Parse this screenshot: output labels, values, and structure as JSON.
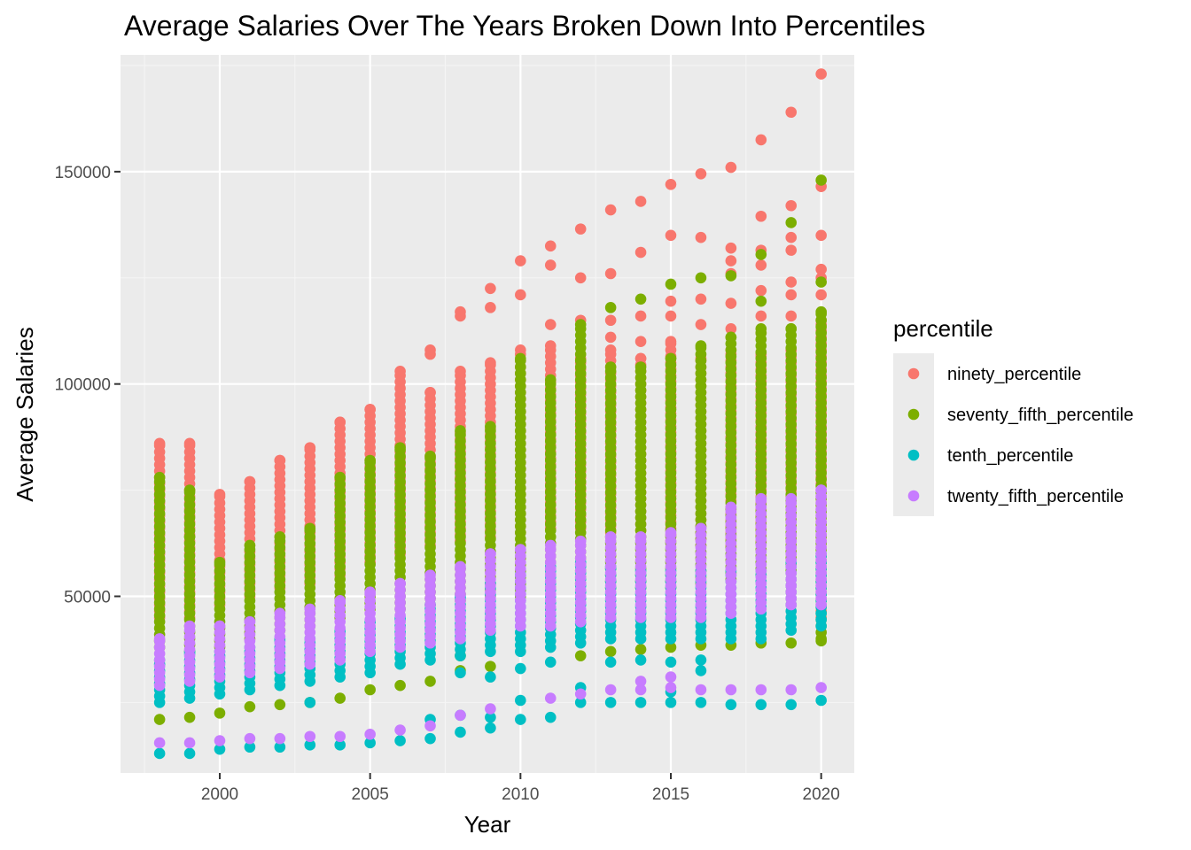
{
  "chart_data": {
    "type": "scatter",
    "title": "Average Salaries Over The Years Broken Down Into Percentiles",
    "xlabel": "Year",
    "ylabel": "Average Salaries",
    "xlim": [
      1996.7,
      2021.1
    ],
    "ylim": [
      8400,
      177500
    ],
    "x_ticks": [
      2000,
      2005,
      2010,
      2015,
      2020
    ],
    "x_tick_labels": [
      "2000",
      "2005",
      "2010",
      "2015",
      "2020"
    ],
    "y_ticks": [
      50000,
      100000,
      150000
    ],
    "y_tick_labels": [
      "50000",
      "100000",
      "150000"
    ],
    "grid": true,
    "legend": {
      "title": "percentile",
      "position": "right"
    },
    "colors": {
      "panel": "#ebebeb",
      "grid_major": "#ffffff",
      "grid_minor": "#f5f5f5"
    },
    "series": [
      {
        "name": "ninety_percentile",
        "color": "#F8766D",
        "points": [
          {
            "year": 1998,
            "min": 45000,
            "max": 86000,
            "extra": []
          },
          {
            "year": 1999,
            "min": 45000,
            "max": 86000,
            "extra": []
          },
          {
            "year": 2000,
            "min": 48000,
            "max": 74000,
            "extra": []
          },
          {
            "year": 2001,
            "min": 50000,
            "max": 77000,
            "extra": []
          },
          {
            "year": 2002,
            "min": 52000,
            "max": 82000,
            "extra": []
          },
          {
            "year": 2003,
            "min": 53000,
            "max": 85000,
            "extra": []
          },
          {
            "year": 2004,
            "min": 55000,
            "max": 91000,
            "extra": []
          },
          {
            "year": 2005,
            "min": 58000,
            "max": 94000,
            "extra": []
          },
          {
            "year": 2006,
            "min": 60000,
            "max": 103000,
            "extra": []
          },
          {
            "year": 2007,
            "min": 62000,
            "max": 98000,
            "extra": [
              107000,
              108000
            ]
          },
          {
            "year": 2008,
            "min": 63000,
            "max": 103000,
            "extra": [
              116000,
              117000
            ]
          },
          {
            "year": 2009,
            "min": 64000,
            "max": 105000,
            "extra": [
              118000,
              122500
            ]
          },
          {
            "year": 2010,
            "min": 65000,
            "max": 108000,
            "extra": [
              121000,
              129000
            ]
          },
          {
            "year": 2011,
            "min": 66000,
            "max": 109000,
            "extra": [
              114000,
              128000,
              132500
            ]
          },
          {
            "year": 2012,
            "min": 66000,
            "max": 106000,
            "extra": [
              115000,
              125000,
              136500
            ]
          },
          {
            "year": 2013,
            "min": 65000,
            "max": 108000,
            "extra": [
              111000,
              115000,
              126000,
              141000
            ]
          },
          {
            "year": 2014,
            "min": 64000,
            "max": 106000,
            "extra": [
              110000,
              116000,
              131000,
              143000
            ]
          },
          {
            "year": 2015,
            "min": 63000,
            "max": 110000,
            "extra": [
              116000,
              119500,
              135000,
              147000
            ]
          },
          {
            "year": 2016,
            "min": 62000,
            "max": 106000,
            "extra": [
              114000,
              120000,
              134500,
              149500
            ]
          },
          {
            "year": 2017,
            "min": 62000,
            "max": 108000,
            "extra": [
              113000,
              119000,
              126000,
              129000,
              132000,
              151000
            ]
          },
          {
            "year": 2018,
            "min": 63000,
            "max": 107000,
            "extra": [
              112000,
              116000,
              122000,
              128000,
              131500,
              139500,
              157500
            ]
          },
          {
            "year": 2019,
            "min": 48000,
            "max": 108000,
            "extra": [
              116000,
              121000,
              124000,
              131500,
              134500,
              142000,
              164000
            ]
          },
          {
            "year": 2020,
            "min": 45000,
            "max": 115000,
            "extra": [
              121000,
              125000,
              127000,
              135000,
              146500,
              173000
            ]
          }
        ]
      },
      {
        "name": "seventy_fifth_percentile",
        "color": "#7CAE00",
        "points": [
          {
            "year": 1998,
            "min": 38000,
            "max": 78000,
            "extra": [
              21000
            ]
          },
          {
            "year": 1999,
            "min": 37000,
            "max": 75000,
            "extra": [
              21500,
              64000
            ]
          },
          {
            "year": 2000,
            "min": 38000,
            "max": 58000,
            "extra": [
              22500
            ]
          },
          {
            "year": 2001,
            "min": 40000,
            "max": 62000,
            "extra": [
              24000
            ]
          },
          {
            "year": 2002,
            "min": 42000,
            "max": 64000,
            "extra": [
              24500
            ]
          },
          {
            "year": 2003,
            "min": 43000,
            "max": 66000,
            "extra": [
              25000
            ]
          },
          {
            "year": 2004,
            "min": 45000,
            "max": 78000,
            "extra": [
              26000
            ]
          },
          {
            "year": 2005,
            "min": 47000,
            "max": 82000,
            "extra": [
              28000
            ]
          },
          {
            "year": 2006,
            "min": 47000,
            "max": 85000,
            "extra": [
              29000
            ]
          },
          {
            "year": 2007,
            "min": 48000,
            "max": 83000,
            "extra": [
              30000
            ]
          },
          {
            "year": 2008,
            "min": 49000,
            "max": 89000,
            "extra": [
              32500,
              36000
            ]
          },
          {
            "year": 2009,
            "min": 50000,
            "max": 90000,
            "extra": [
              33500
            ]
          },
          {
            "year": 2010,
            "min": 50000,
            "max": 106000,
            "extra": []
          },
          {
            "year": 2011,
            "min": 52000,
            "max": 101000,
            "extra": []
          },
          {
            "year": 2012,
            "min": 53000,
            "max": 114000,
            "extra": [
              36000
            ]
          },
          {
            "year": 2013,
            "min": 52000,
            "max": 104000,
            "extra": [
              37000,
              118000
            ]
          },
          {
            "year": 2014,
            "min": 52000,
            "max": 104000,
            "extra": [
              37500,
              120000
            ]
          },
          {
            "year": 2015,
            "min": 52000,
            "max": 106000,
            "extra": [
              38000,
              123500
            ]
          },
          {
            "year": 2016,
            "min": 53000,
            "max": 109000,
            "extra": [
              38500,
              125000
            ]
          },
          {
            "year": 2017,
            "min": 54000,
            "max": 111000,
            "extra": [
              38500,
              125500
            ]
          },
          {
            "year": 2018,
            "min": 55000,
            "max": 113000,
            "extra": [
              39000,
              119500,
              130500
            ]
          },
          {
            "year": 2019,
            "min": 56000,
            "max": 113000,
            "extra": [
              39000,
              138000
            ]
          },
          {
            "year": 2020,
            "min": 40000,
            "max": 117000,
            "extra": [
              39500,
              124000,
              148000
            ]
          }
        ]
      },
      {
        "name": "tenth_percentile",
        "color": "#00BFC4",
        "points": [
          {
            "year": 1998,
            "min": 25000,
            "max": 35000,
            "extra": [
              13000
            ]
          },
          {
            "year": 1999,
            "min": 26000,
            "max": 37000,
            "extra": [
              13000
            ]
          },
          {
            "year": 2000,
            "min": 27000,
            "max": 37000,
            "extra": [
              14000
            ]
          },
          {
            "year": 2001,
            "min": 28000,
            "max": 38000,
            "extra": [
              14500
            ]
          },
          {
            "year": 2002,
            "min": 29000,
            "max": 40000,
            "extra": [
              14500
            ]
          },
          {
            "year": 2003,
            "min": 30000,
            "max": 40000,
            "extra": [
              15000,
              25000
            ]
          },
          {
            "year": 2004,
            "min": 31000,
            "max": 42000,
            "extra": [
              15000
            ]
          },
          {
            "year": 2005,
            "min": 32000,
            "max": 44000,
            "extra": [
              15500
            ]
          },
          {
            "year": 2006,
            "min": 34000,
            "max": 45000,
            "extra": [
              16000
            ]
          },
          {
            "year": 2007,
            "min": 35000,
            "max": 48000,
            "extra": [
              16500,
              21000
            ]
          },
          {
            "year": 2008,
            "min": 36000,
            "max": 50000,
            "extra": [
              18000,
              22000,
              32000
            ]
          },
          {
            "year": 2009,
            "min": 37000,
            "max": 53000,
            "extra": [
              19000,
              21500,
              31000
            ]
          },
          {
            "year": 2010,
            "min": 37000,
            "max": 55000,
            "extra": [
              21000,
              25500,
              33000
            ]
          },
          {
            "year": 2011,
            "min": 38000,
            "max": 57000,
            "extra": [
              21500,
              34500
            ]
          },
          {
            "year": 2012,
            "min": 39000,
            "max": 58000,
            "extra": [
              25000,
              28500
            ]
          },
          {
            "year": 2013,
            "min": 40000,
            "max": 57000,
            "extra": [
              25000,
              34500
            ]
          },
          {
            "year": 2014,
            "min": 40000,
            "max": 56000,
            "extra": [
              25000,
              35000
            ]
          },
          {
            "year": 2015,
            "min": 40000,
            "max": 56000,
            "extra": [
              25000,
              27500,
              34500
            ]
          },
          {
            "year": 2016,
            "min": 40000,
            "max": 56000,
            "extra": [
              25000,
              32500,
              35000
            ]
          },
          {
            "year": 2017,
            "min": 40000,
            "max": 56000,
            "extra": [
              24500
            ]
          },
          {
            "year": 2018,
            "min": 40000,
            "max": 56000,
            "extra": [
              24500
            ]
          },
          {
            "year": 2019,
            "min": 42000,
            "max": 58000,
            "extra": [
              24500
            ]
          },
          {
            "year": 2020,
            "min": 43000,
            "max": 60000,
            "extra": [
              25500
            ]
          }
        ]
      },
      {
        "name": "twenty_fifth_percentile",
        "color": "#C77CFF",
        "points": [
          {
            "year": 1998,
            "min": 29000,
            "max": 40000,
            "extra": [
              15500
            ]
          },
          {
            "year": 1999,
            "min": 30000,
            "max": 43000,
            "extra": [
              15500
            ]
          },
          {
            "year": 2000,
            "min": 31000,
            "max": 43000,
            "extra": [
              16000
            ]
          },
          {
            "year": 2001,
            "min": 32000,
            "max": 44000,
            "extra": [
              16500
            ]
          },
          {
            "year": 2002,
            "min": 33000,
            "max": 46000,
            "extra": [
              16500
            ]
          },
          {
            "year": 2003,
            "min": 34000,
            "max": 47000,
            "extra": [
              17000
            ]
          },
          {
            "year": 2004,
            "min": 35000,
            "max": 49000,
            "extra": [
              17000
            ]
          },
          {
            "year": 2005,
            "min": 37000,
            "max": 51000,
            "extra": [
              17500
            ]
          },
          {
            "year": 2006,
            "min": 38000,
            "max": 53000,
            "extra": [
              18500
            ]
          },
          {
            "year": 2007,
            "min": 39000,
            "max": 55000,
            "extra": [
              19500
            ]
          },
          {
            "year": 2008,
            "min": 40000,
            "max": 57000,
            "extra": [
              22000
            ]
          },
          {
            "year": 2009,
            "min": 42000,
            "max": 60000,
            "extra": [
              23500
            ]
          },
          {
            "year": 2010,
            "min": 43000,
            "max": 61000,
            "extra": []
          },
          {
            "year": 2011,
            "min": 43000,
            "max": 62000,
            "extra": [
              26000
            ]
          },
          {
            "year": 2012,
            "min": 44000,
            "max": 63000,
            "extra": [
              27000
            ]
          },
          {
            "year": 2013,
            "min": 45000,
            "max": 64000,
            "extra": [
              28000
            ]
          },
          {
            "year": 2014,
            "min": 45000,
            "max": 64000,
            "extra": [
              28000,
              30000
            ]
          },
          {
            "year": 2015,
            "min": 45000,
            "max": 65000,
            "extra": [
              28500,
              31000
            ]
          },
          {
            "year": 2016,
            "min": 45000,
            "max": 66000,
            "extra": [
              28000
            ]
          },
          {
            "year": 2017,
            "min": 46000,
            "max": 71000,
            "extra": [
              28000
            ]
          },
          {
            "year": 2018,
            "min": 47000,
            "max": 73000,
            "extra": [
              28000
            ]
          },
          {
            "year": 2019,
            "min": 48000,
            "max": 73000,
            "extra": [
              28000
            ]
          },
          {
            "year": 2020,
            "min": 48000,
            "max": 75000,
            "extra": [
              28500
            ]
          }
        ]
      }
    ]
  }
}
